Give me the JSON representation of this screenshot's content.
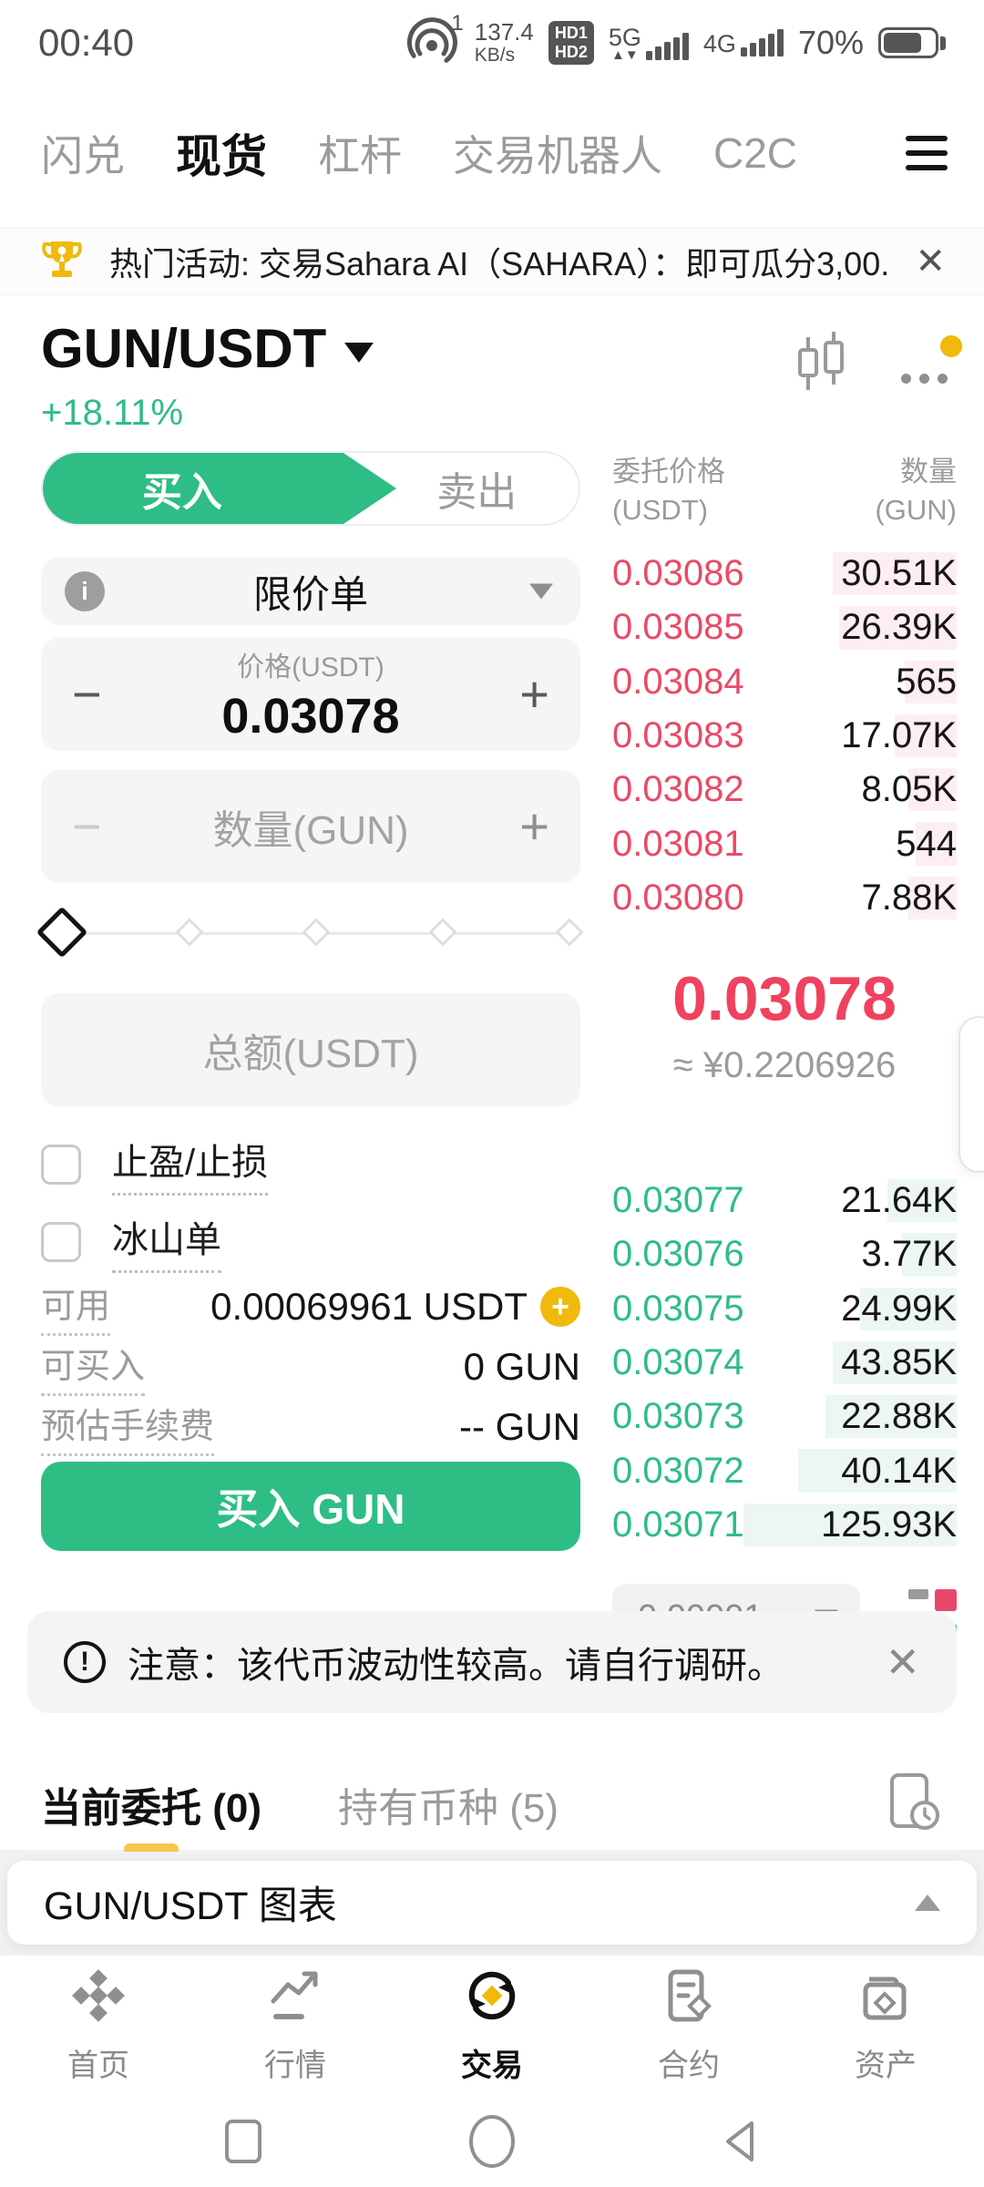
{
  "status_bar": {
    "time": "00:40",
    "sim": "1",
    "net_speed_value": "137.4",
    "net_speed_unit": "KB/s",
    "hd1": "HD1",
    "hd2": "HD2",
    "network_1": "5G",
    "network_2": "4G",
    "battery_percent": "70%"
  },
  "top_nav": {
    "items": [
      {
        "label": "闪兑",
        "active": false
      },
      {
        "label": "现货",
        "active": true
      },
      {
        "label": "杠杆",
        "active": false
      },
      {
        "label": "交易机器人",
        "active": false
      },
      {
        "label": "C2C",
        "active": false
      }
    ]
  },
  "banner": {
    "text": "热门活动: 交易Sahara AI（SAHARA）：即可瓜分3,00...",
    "close": "✕"
  },
  "symbol_header": {
    "pair": "GUN/USDT",
    "change": "+18.11%"
  },
  "trade_panel": {
    "buy_tab": "买入",
    "sell_tab": "卖出",
    "order_type": "限价单",
    "info_icon": "i",
    "stepper_minus": "−",
    "stepper_plus": "+",
    "price_label": "价格(USDT)",
    "price_value": "0.03078",
    "amount_placeholder": "数量(GUN)",
    "total_placeholder": "总额(USDT)",
    "checkboxes": [
      {
        "label": "止盈/止损",
        "checked": false
      },
      {
        "label": "冰山单",
        "checked": false
      }
    ],
    "info_rows": [
      {
        "label": "可用",
        "value": "0.00069961 USDT",
        "has_add": true
      },
      {
        "label": "可买入",
        "value": "0 GUN",
        "has_add": false
      },
      {
        "label": "预估手续费",
        "value": "-- GUN",
        "has_add": false
      }
    ],
    "add_icon": "+",
    "submit_label": "买入 GUN"
  },
  "order_book": {
    "header": {
      "price_line1": "委托价格",
      "price_line2": "(USDT)",
      "amount_line1": "数量",
      "amount_line2": "(GUN)"
    },
    "asks": [
      {
        "price": "0.03086",
        "amount": "30.51K",
        "depth": 36
      },
      {
        "price": "0.03085",
        "amount": "26.39K",
        "depth": 34
      },
      {
        "price": "0.03084",
        "amount": "565",
        "depth": 15
      },
      {
        "price": "0.03083",
        "amount": "17.07K",
        "depth": 18
      },
      {
        "price": "0.03082",
        "amount": "8.05K",
        "depth": 14
      },
      {
        "price": "0.03081",
        "amount": "544",
        "depth": 12
      },
      {
        "price": "0.03080",
        "amount": "7.88K",
        "depth": 14
      }
    ],
    "last_price": "0.03078",
    "fiat_value": "≈ ¥0.2206926",
    "bids": [
      {
        "price": "0.03077",
        "amount": "21.64K",
        "depth": 20
      },
      {
        "price": "0.03076",
        "amount": "3.77K",
        "depth": 16
      },
      {
        "price": "0.03075",
        "amount": "24.99K",
        "depth": 28
      },
      {
        "price": "0.03074",
        "amount": "43.85K",
        "depth": 36
      },
      {
        "price": "0.03073",
        "amount": "22.88K",
        "depth": 38
      },
      {
        "price": "0.03072",
        "amount": "40.14K",
        "depth": 46
      },
      {
        "price": "0.03071",
        "amount": "125.93K",
        "depth": 62
      }
    ],
    "tick_size": "0.00001"
  },
  "notice": {
    "icon": "!",
    "text": "注意：该代币波动性较高。请自行调研。",
    "close": "✕"
  },
  "positions_tabs": {
    "open_orders": "当前委托 (0)",
    "holdings": "持有币种 (5)"
  },
  "chart_panel": {
    "title": "GUN/USDT 图表"
  },
  "bottom_nav": {
    "items": [
      {
        "label": "首页",
        "active": false
      },
      {
        "label": "行情",
        "active": false
      },
      {
        "label": "交易",
        "active": true
      },
      {
        "label": "合约",
        "active": false
      },
      {
        "label": "资产",
        "active": false
      }
    ]
  },
  "colors": {
    "up_green": "#2ebd85",
    "down_red": "#e94a66",
    "last_price_red": "#f0425f",
    "accent_yellow": "#f0b90b"
  }
}
